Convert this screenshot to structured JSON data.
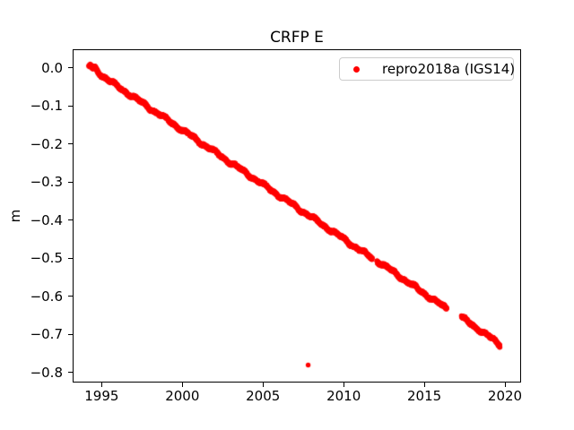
{
  "chart_data": {
    "type": "scatter",
    "title": "CRFP E",
    "xlabel": "",
    "ylabel": "m",
    "grid": false,
    "xlim": [
      1993.2,
      2021.0
    ],
    "ylim": [
      -0.826,
      0.049
    ],
    "x_ticks": [
      {
        "value": 1995,
        "label": "1995"
      },
      {
        "value": 2000,
        "label": "2000"
      },
      {
        "value": 2005,
        "label": "2005"
      },
      {
        "value": 2010,
        "label": "2010"
      },
      {
        "value": 2015,
        "label": "2015"
      },
      {
        "value": 2020,
        "label": "2020"
      }
    ],
    "y_ticks": [
      {
        "value": 0.0,
        "label": "0.0"
      },
      {
        "value": -0.1,
        "label": "−0.1"
      },
      {
        "value": -0.2,
        "label": "−0.2"
      },
      {
        "value": -0.3,
        "label": "−0.3"
      },
      {
        "value": -0.4,
        "label": "−0.4"
      },
      {
        "value": -0.5,
        "label": "−0.5"
      },
      {
        "value": -0.6,
        "label": "−0.6"
      },
      {
        "value": -0.7,
        "label": "−0.7"
      },
      {
        "value": -0.8,
        "label": "−0.8"
      }
    ],
    "legend": {
      "label": "repro2018a (IGS14)",
      "marker_color": "#ff0000",
      "position": "upper right"
    },
    "series": [
      {
        "name": "repro2018a (IGS14)",
        "color": "#ff0000",
        "marker": "dot",
        "marker_size_px": 5.4,
        "trend_m_per_year": -0.0286,
        "segments": [
          {
            "anchors": [
              [
                1994.2,
                0.003
              ],
              [
                1994.3,
                0.006
              ],
              [
                1994.45,
                -0.003
              ],
              [
                1994.6,
                0.0
              ],
              [
                1994.8,
                -0.01
              ],
              [
                1995.0,
                -0.019
              ],
              [
                1996.0,
                -0.049
              ],
              [
                1997.0,
                -0.077
              ],
              [
                1998.0,
                -0.106
              ],
              [
                1999.0,
                -0.134
              ],
              [
                2000.0,
                -0.163
              ],
              [
                2001.0,
                -0.192
              ],
              [
                2002.0,
                -0.22
              ],
              [
                2003.0,
                -0.249
              ],
              [
                2004.0,
                -0.277
              ],
              [
                2005.0,
                -0.306
              ],
              [
                2006.0,
                -0.335
              ],
              [
                2007.0,
                -0.363
              ],
              [
                2008.0,
                -0.392
              ],
              [
                2009.0,
                -0.42
              ],
              [
                2010.0,
                -0.449
              ],
              [
                2011.0,
                -0.478
              ],
              [
                2011.78,
                -0.5
              ]
            ]
          },
          {
            "anchors": [
              [
                2012.06,
                -0.506
              ],
              [
                2013.0,
                -0.533
              ],
              [
                2014.0,
                -0.563
              ],
              [
                2015.0,
                -0.592
              ],
              [
                2016.0,
                -0.621
              ],
              [
                2016.4,
                -0.633
              ]
            ]
          },
          {
            "anchors": [
              [
                2017.3,
                -0.655
              ],
              [
                2018.0,
                -0.675
              ],
              [
                2019.0,
                -0.705
              ],
              [
                2019.7,
                -0.727
              ]
            ]
          }
        ],
        "outliers": [
          [
            2007.8,
            -0.78
          ]
        ]
      }
    ],
    "noise": {
      "band_halfwidth_m": 0.0035,
      "step_years": 0.008
    }
  }
}
